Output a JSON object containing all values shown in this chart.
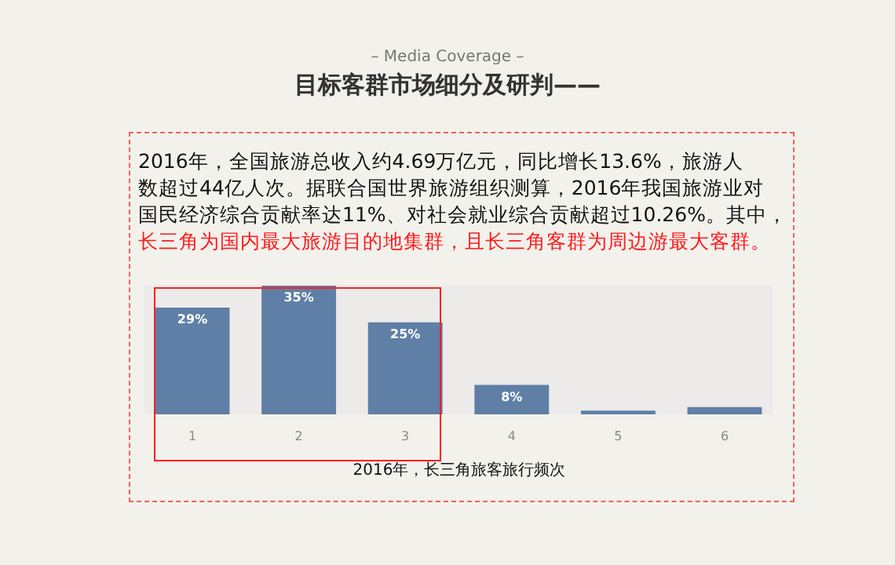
{
  "chart_data": {
    "type": "bar",
    "subtitle": "– Media Coverage –",
    "title": "目标客群市场细分及研判——",
    "annotations": [
      "2016年，全国旅游总收入约4.69万亿元，同比增长13.6%，旅游人",
      "数超过44亿人次。据联合国世界旅游组织测算，2016年我国旅游业对",
      "国民经济综合贡献率达11%、对社会就业综合贡献超过10.26%。其中，",
      "长三角为国内最大旅游目的地集群，且长三角客群为周边游最大客群。"
    ],
    "xlabel": "2016年，长三角旅客旅行频次",
    "categories": [
      "1",
      "2",
      "3",
      "4",
      "5",
      "6"
    ],
    "values": [
      29,
      35,
      25,
      8,
      1,
      2
    ],
    "value_labels": [
      "29%",
      "35%",
      "25%",
      "8%",
      null,
      null
    ],
    "color": "#5f7fa6"
  }
}
